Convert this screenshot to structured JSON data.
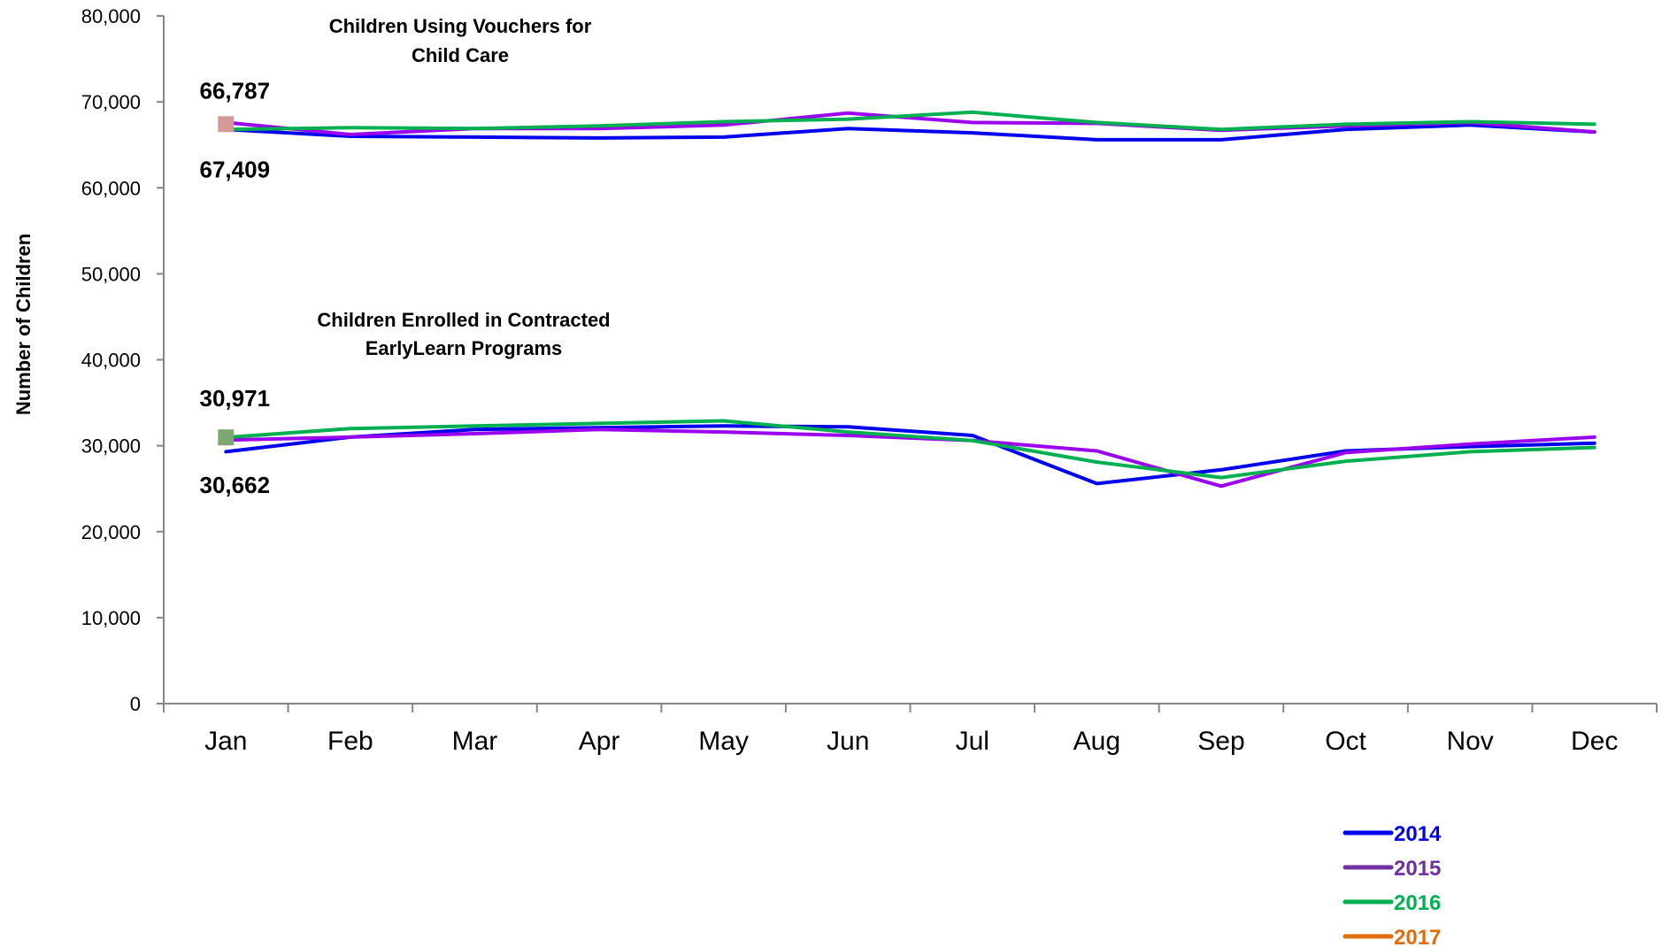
{
  "chart_data": {
    "type": "line",
    "title": "",
    "xlabel": "",
    "ylabel": "Number of Children",
    "ylim": [
      0,
      80000
    ],
    "y_ticks": [
      "0",
      "10,000",
      "20,000",
      "30,000",
      "40,000",
      "50,000",
      "60,000",
      "70,000",
      "80,000"
    ],
    "y_tick_values": [
      0,
      10000,
      20000,
      30000,
      40000,
      50000,
      60000,
      70000,
      80000
    ],
    "categories": [
      "Jan",
      "Feb",
      "Mar",
      "Apr",
      "May",
      "Jun",
      "Jul",
      "Aug",
      "Sep",
      "Oct",
      "Nov",
      "Dec"
    ],
    "grid": false,
    "legend_position": "bottom-right",
    "groups": [
      {
        "label": "Children Using Vouchers for Child Care",
        "label_lines": [
          "Children Using Vouchers for",
          "Child Care"
        ],
        "series": [
          {
            "name": "2014",
            "color": "#0000EE",
            "values": [
              66800,
              66000,
              65900,
              65800,
              65900,
              66900,
              66400,
              65600,
              65600,
              66800,
              67300,
              66500
            ]
          },
          {
            "name": "2015",
            "color": "#9B00EE",
            "values": [
              67600,
              66200,
              66900,
              66900,
              67300,
              68700,
              67600,
              67500,
              66700,
              67200,
              67600,
              66500
            ]
          },
          {
            "name": "2016",
            "color": "#00B050",
            "values": [
              66787,
              67000,
              66900,
              67200,
              67700,
              68000,
              68800,
              67600,
              66800,
              67400,
              67700,
              67400
            ]
          },
          {
            "name": "2017",
            "color": "#E26B0A",
            "values": [
              67409
            ]
          }
        ],
        "data_labels": [
          {
            "series": "2016",
            "category": "Jan",
            "text": "66,787",
            "position": "above"
          },
          {
            "series": "2017",
            "category": "Jan",
            "text": "67,409",
            "position": "below"
          }
        ],
        "marker": {
          "series": "2017",
          "category": "Jan",
          "value": 67409,
          "shape": "square",
          "color": "#D49A9A"
        }
      },
      {
        "label": "Children Enrolled in Contracted EarlyLearn Programs",
        "label_lines": [
          "Children Enrolled in Contracted",
          "EarlyLearn Programs"
        ],
        "series": [
          {
            "name": "2014",
            "color": "#0000EE",
            "values": [
              29300,
              31000,
              31900,
              32100,
              32300,
              32200,
              31200,
              25600,
              27200,
              29400,
              29900,
              30300
            ]
          },
          {
            "name": "2015",
            "color": "#9B00EE",
            "values": [
              30662,
              31000,
              31400,
              31900,
              31600,
              31200,
              30600,
              29400,
              25300,
              29200,
              30200,
              31000
            ]
          },
          {
            "name": "2016",
            "color": "#00B050",
            "values": [
              30971,
              32000,
              32300,
              32600,
              32900,
              31600,
              30600,
              28100,
              26300,
              28200,
              29300,
              29800
            ]
          },
          {
            "name": "2017",
            "color": "#E26B0A",
            "values": [
              30971
            ]
          }
        ],
        "data_labels": [
          {
            "series": "2016",
            "category": "Jan",
            "text": "30,971",
            "position": "above"
          },
          {
            "series": "2015",
            "category": "Jan",
            "text": "30,662",
            "position": "below"
          }
        ],
        "marker": {
          "series": "2017",
          "category": "Jan",
          "value": 30971,
          "shape": "square",
          "color": "#7FA870"
        }
      }
    ],
    "legend": [
      {
        "name": "2014",
        "color": "#0000EE"
      },
      {
        "name": "2015",
        "color": "#7030A0"
      },
      {
        "name": "2016",
        "color": "#00B050"
      },
      {
        "name": "2017",
        "color": "#E26B0A"
      }
    ]
  }
}
